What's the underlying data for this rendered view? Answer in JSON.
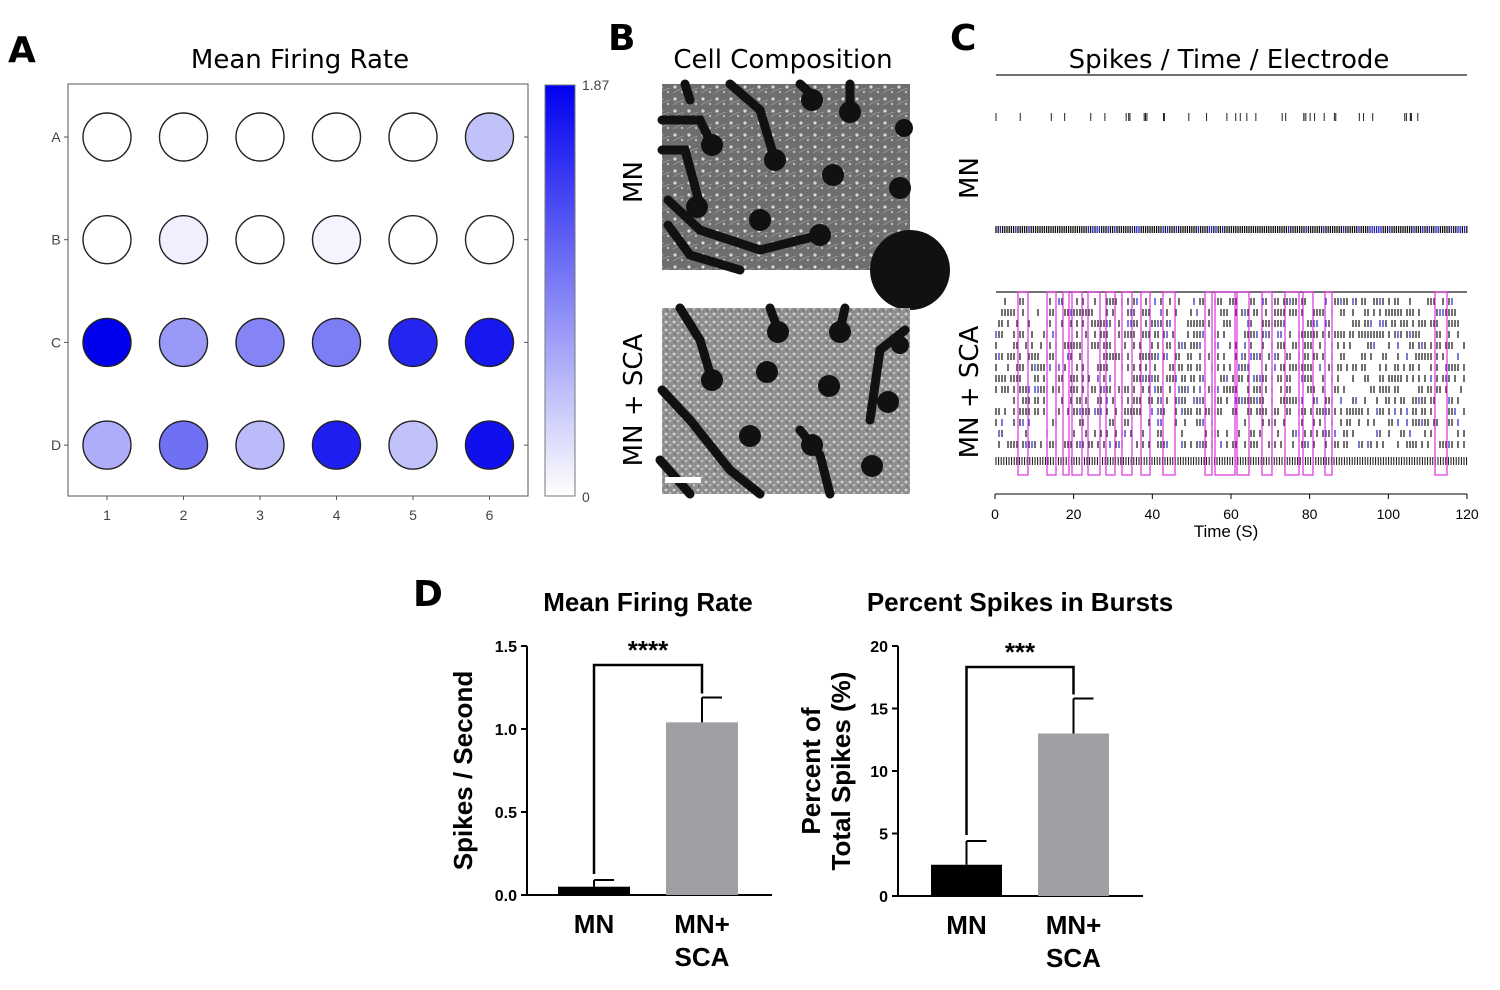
{
  "panels": {
    "a": {
      "label": "A",
      "title": "Mean Firing Rate",
      "rows": [
        "A",
        "B",
        "C",
        "D"
      ],
      "cols": [
        "1",
        "2",
        "3",
        "4",
        "5",
        "6"
      ],
      "colorbar": {
        "max_label": "1.87",
        "min_label": "0",
        "low_color": "#ffffff",
        "high_color": "#0000ee"
      }
    },
    "b": {
      "label": "B",
      "title": "Cell Composition",
      "images": [
        "MN",
        "MN + SCA"
      ]
    },
    "c": {
      "label": "C",
      "title": "Spikes / Time / Electrode",
      "groups": [
        "MN",
        "MN + SCA"
      ],
      "xlabel": "Time (S)",
      "xticks": [
        "0",
        "20",
        "40",
        "60",
        "80",
        "100",
        "120"
      ],
      "burst_color": "#e040e0"
    },
    "d": {
      "label": "D"
    }
  },
  "chart_data": [
    {
      "type": "heatmap",
      "title": "Mean Firing Rate",
      "rows": [
        "A",
        "B",
        "C",
        "D"
      ],
      "cols": [
        "1",
        "2",
        "3",
        "4",
        "5",
        "6"
      ],
      "values": [
        [
          0.0,
          0.0,
          0.0,
          0.0,
          0.0,
          0.45
        ],
        [
          0.0,
          0.12,
          0.0,
          0.08,
          0.0,
          0.0
        ],
        [
          1.87,
          0.75,
          0.9,
          0.95,
          1.6,
          1.7
        ],
        [
          0.6,
          1.05,
          0.5,
          1.65,
          0.45,
          1.75
        ]
      ],
      "vmin": 0,
      "vmax": 1.87
    },
    {
      "type": "bar",
      "title": "Mean Firing Rate",
      "categories": [
        "MN",
        "MN+ SCA"
      ],
      "values": [
        0.05,
        1.04
      ],
      "errors": [
        0.04,
        0.15
      ],
      "colors": [
        "#000000",
        "#a0a0a4"
      ],
      "ylabel": "Spikes / Second",
      "ylim": [
        0,
        1.5
      ],
      "yticks": [
        "0.0",
        "0.5",
        "1.0",
        "1.5"
      ],
      "significance": "****"
    },
    {
      "type": "bar",
      "title": "Percent Spikes in Bursts",
      "categories": [
        "MN",
        "MN+ SCA"
      ],
      "values": [
        2.5,
        13.0
      ],
      "errors": [
        1.9,
        2.8
      ],
      "colors": [
        "#000000",
        "#a0a0a4"
      ],
      "ylabel": "Percent of Total Spikes (%)",
      "ylabel_lines": [
        "Percent of",
        "Total Spikes  (%)"
      ],
      "ylim": [
        0,
        20
      ],
      "yticks": [
        "0",
        "5",
        "10",
        "15",
        "20"
      ],
      "significance": "***"
    }
  ]
}
